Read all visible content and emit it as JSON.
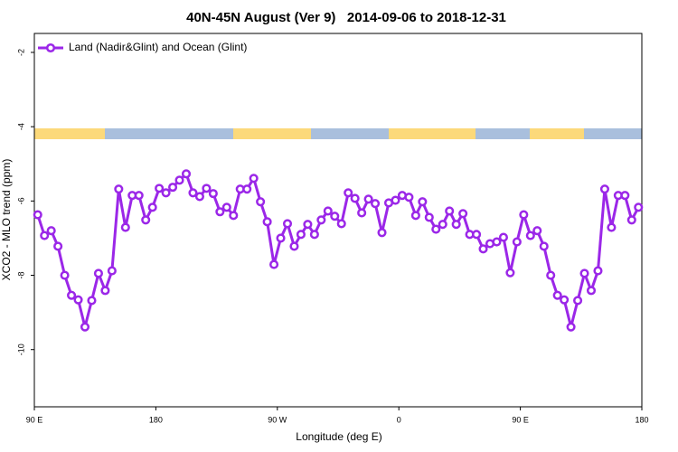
{
  "chart_data": {
    "type": "line",
    "title": "40N-45N August (Ver 9)   2014-09-06 to 2018-12-31",
    "xlabel": "Longitude (deg E)",
    "ylabel": "XCO2 - MLO trend (ppm)",
    "xlim": [
      90,
      540
    ],
    "xticks": [
      {
        "value": 90,
        "label": "90 E"
      },
      {
        "value": 180,
        "label": "180"
      },
      {
        "value": 270,
        "label": "90 W"
      },
      {
        "value": 360,
        "label": "0"
      },
      {
        "value": 450,
        "label": "90 E"
      },
      {
        "value": 540,
        "label": "180"
      }
    ],
    "ylim": [
      -11.54,
      -1.49
    ],
    "yticks": [
      -2,
      -4,
      -6,
      -8,
      -10
    ],
    "legend": "upper left",
    "x": [
      92.5,
      97.5,
      102.5,
      107.5,
      112.5,
      117.5,
      122.5,
      127.5,
      132.5,
      137.5,
      142.5,
      147.5,
      152.5,
      157.5,
      162.5,
      167.5,
      172.5,
      177.5,
      182.5,
      187.5,
      192.5,
      197.5,
      202.5,
      207.5,
      212.5,
      217.5,
      222.5,
      227.5,
      232.5,
      237.5,
      242.5,
      247.5,
      252.5,
      257.5,
      262.5,
      267.5,
      272.5,
      277.5,
      282.5,
      287.5,
      292.5,
      297.5,
      302.5,
      307.5,
      312.5,
      317.5,
      322.5,
      327.5,
      332.5,
      337.5,
      342.5,
      347.5,
      352.5,
      357.5,
      362.5,
      367.5,
      372.5,
      377.5,
      382.5,
      387.5,
      392.5,
      397.5,
      402.5,
      407.5,
      412.5,
      417.5,
      422.5,
      427.5,
      432.5,
      437.5,
      442.5,
      447.5,
      452.5,
      457.5,
      462.5,
      467.5,
      472.5,
      477.5,
      482.5,
      487.5,
      492.5,
      497.5,
      502.5,
      507.5,
      512.5,
      517.5,
      522.5,
      527.5,
      532.5,
      537.5
    ],
    "series": [
      {
        "name": "Land (Nadir&Glint) and Ocean (Glint)",
        "color": "#9b27e8",
        "values": [
          -6.37,
          -6.93,
          -6.8,
          -7.22,
          -8.0,
          -8.54,
          -8.66,
          -9.39,
          -8.68,
          -7.95,
          -8.41,
          -7.88,
          -5.68,
          -6.71,
          -5.85,
          -5.85,
          -6.51,
          -6.17,
          -5.66,
          -5.78,
          -5.63,
          -5.44,
          -5.27,
          -5.78,
          -5.88,
          -5.66,
          -5.8,
          -6.29,
          -6.17,
          -6.39,
          -5.68,
          -5.68,
          -5.39,
          -6.02,
          -6.56,
          -7.71,
          -7.0,
          -6.61,
          -7.22,
          -6.9,
          -6.63,
          -6.9,
          -6.51,
          -6.27,
          -6.41,
          -6.61,
          -5.78,
          -5.93,
          -6.32,
          -5.95,
          -6.07,
          -6.85,
          -6.05,
          -5.98,
          -5.85,
          -5.9,
          -6.39,
          -6.02,
          -6.44,
          -6.76,
          -6.63,
          -6.27,
          -6.63,
          -6.34,
          -6.9,
          -6.9,
          -7.29,
          -7.15,
          -7.1,
          -6.98,
          -7.93,
          -7.1,
          -6.37,
          -6.93,
          -6.8,
          -7.22,
          -8.0,
          -8.54,
          -8.66,
          -9.39,
          -8.68,
          -7.95,
          -8.41,
          -7.88,
          -5.68,
          -6.71,
          -5.85,
          -5.85,
          -6.51,
          -6.17
        ]
      }
    ]
  }
}
